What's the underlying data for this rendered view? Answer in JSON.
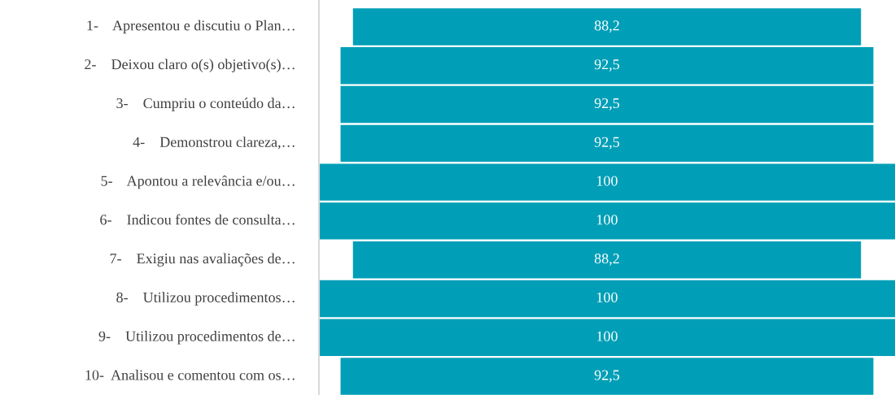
{
  "chart_data": {
    "type": "other",
    "categories": [
      "1-    Apresentou e discutiu o Plan…",
      "2-    Deixou claro o(s) objetivo(s)…",
      "3-    Cumpriu o conteúdo da…",
      "4-    Demonstrou clareza,…",
      "5-    Apontou a relevância e/ou…",
      "6-    Indicou fontes de consulta…",
      "7-    Exigiu nas avaliações de…",
      "8-    Utilizou procedimentos…",
      "9-    Utilizou procedimentos de…",
      "10-  Analisou e comentou com os…"
    ],
    "values": [
      88.2,
      92.5,
      92.5,
      92.5,
      100,
      100,
      88.2,
      100,
      100,
      92.5
    ],
    "value_labels": [
      "88,2",
      "92,5",
      "92,5",
      "92,5",
      "100",
      "100",
      "88,2",
      "100",
      "100",
      "92,5"
    ],
    "color": "#009fb7"
  }
}
